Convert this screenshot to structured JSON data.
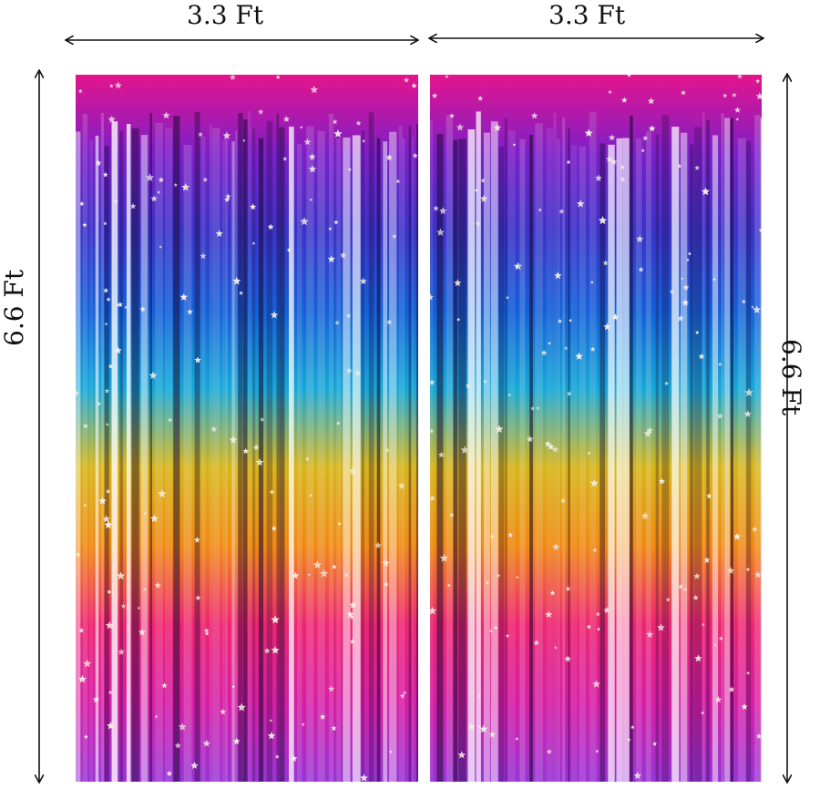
{
  "dimensions": {
    "width_label_left": "3.3 Ft",
    "width_label_right": "3.3 Ft",
    "height_label_left": "6.6 Ft",
    "height_label_right": "6.6 Ft"
  },
  "curtain": {
    "gradient_colors": [
      "#e4148c",
      "#7d1fc8",
      "#3b33c9",
      "#1560d8",
      "#17a8d8",
      "#d8b51a",
      "#f08a14",
      "#ee2672",
      "#d61fa6",
      "#9a34d6"
    ],
    "star_color": "#f4f0e6"
  }
}
